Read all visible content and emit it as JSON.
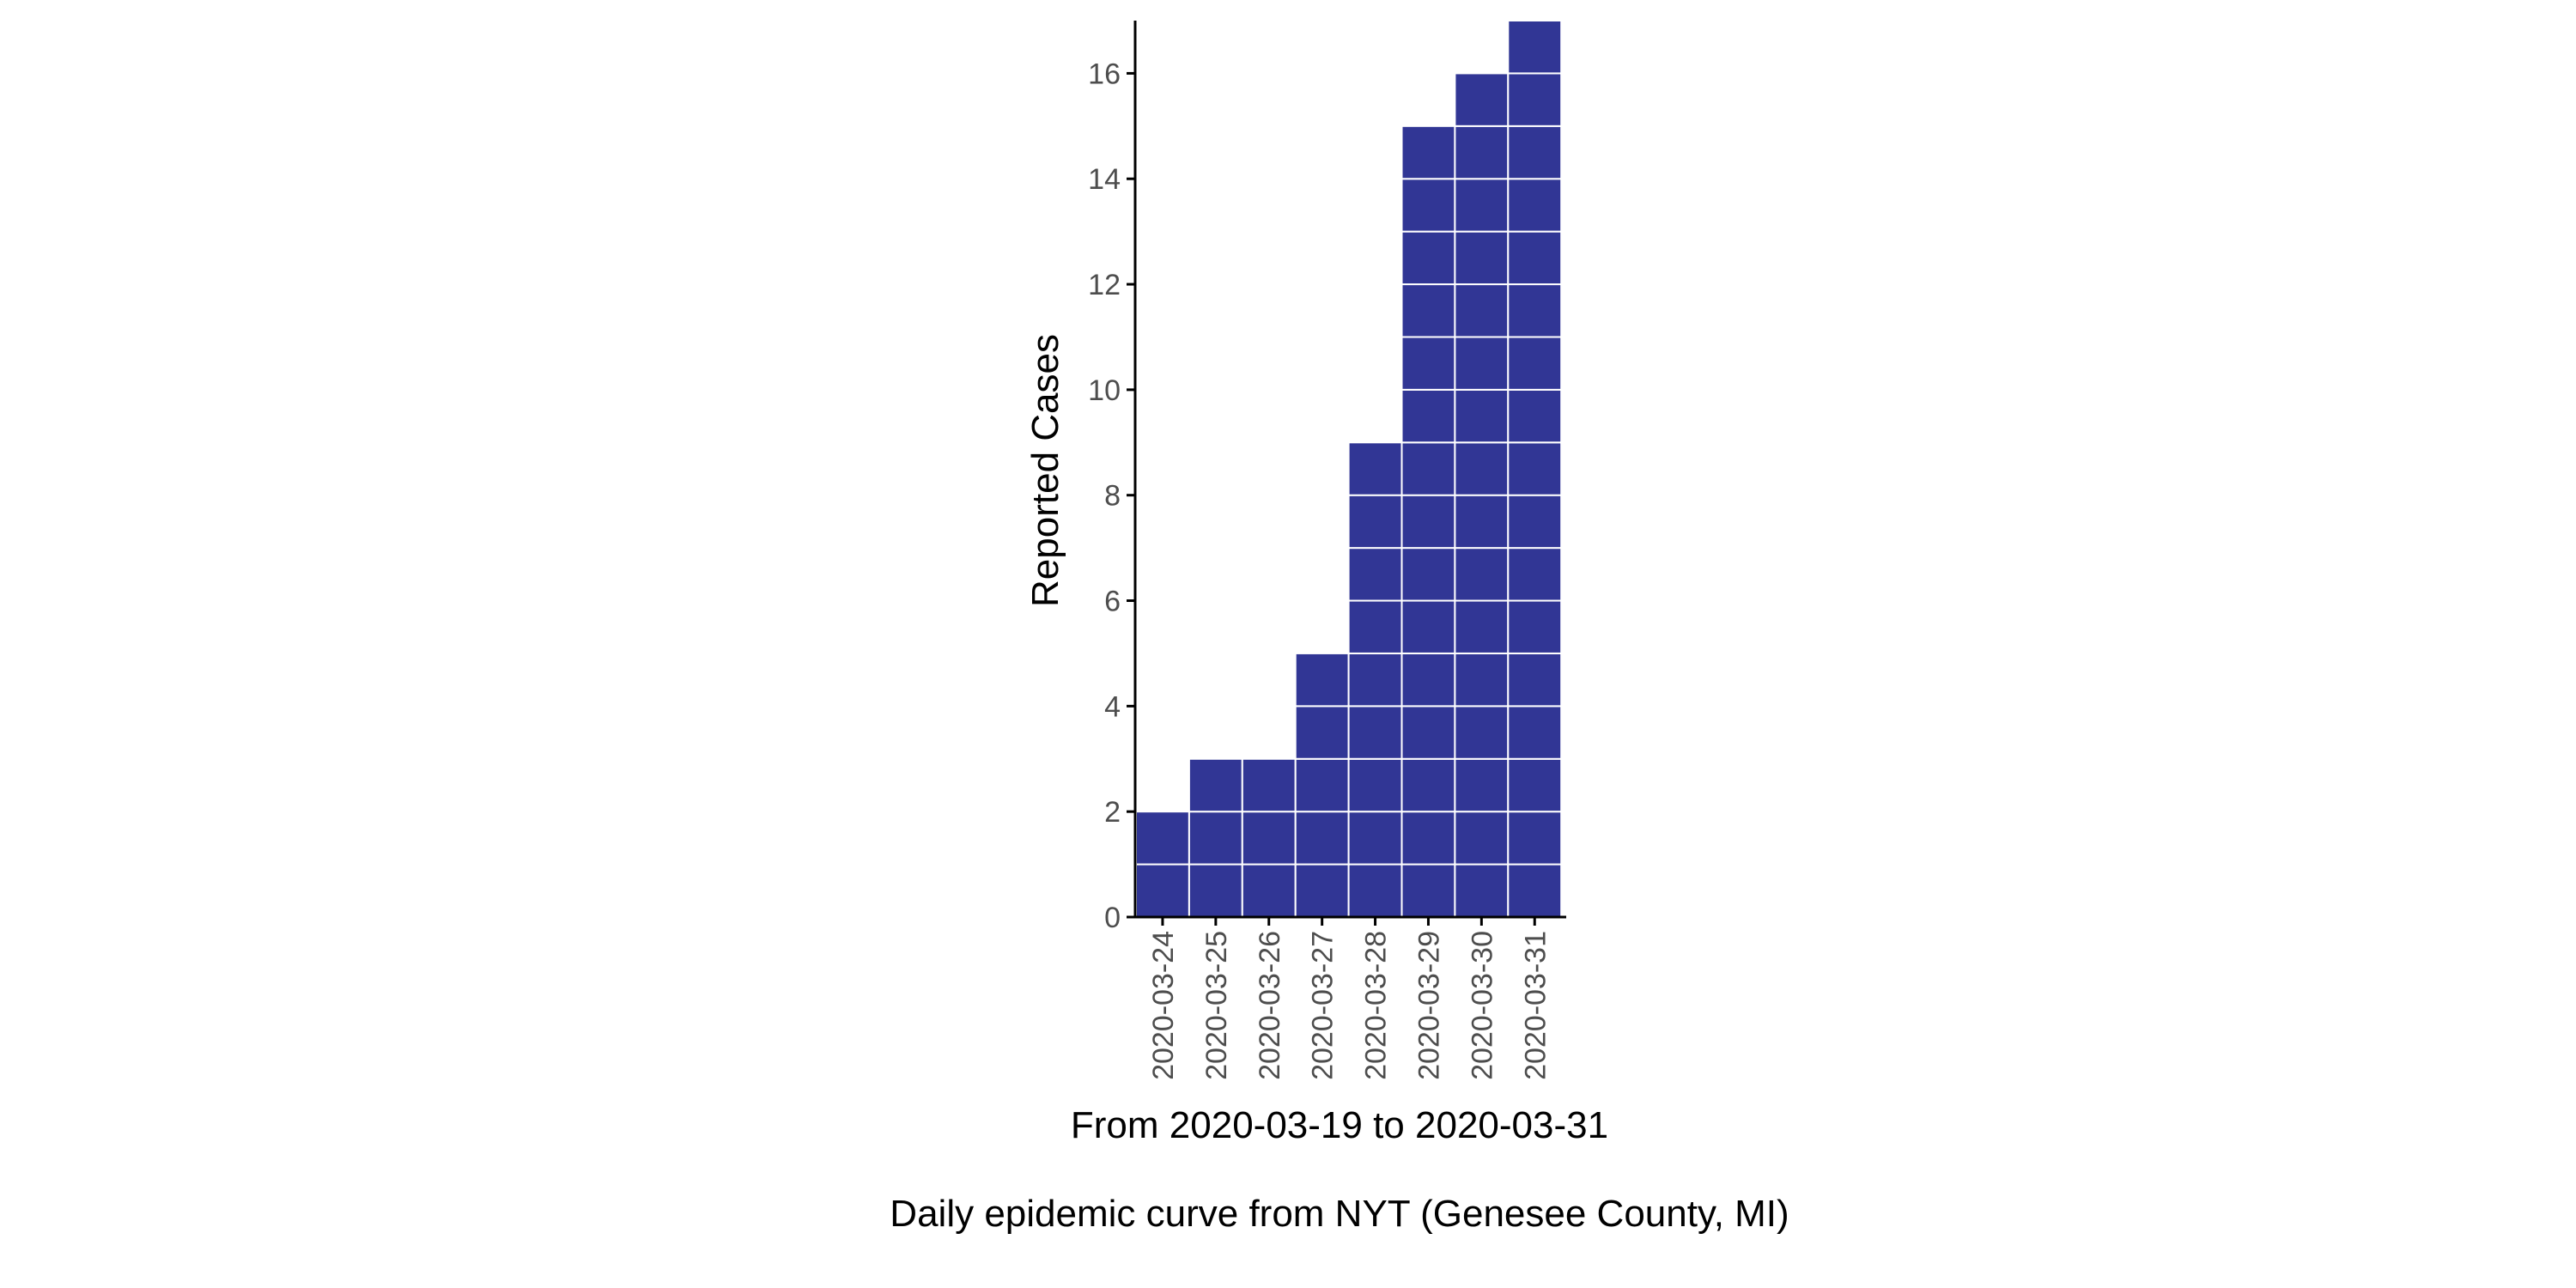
{
  "chart_data": {
    "type": "bar",
    "style": "stacked unit tiles (one tile per reported case)",
    "categories": [
      "2020-03-24",
      "2020-03-25",
      "2020-03-26",
      "2020-03-27",
      "2020-03-28",
      "2020-03-29",
      "2020-03-30",
      "2020-03-31"
    ],
    "values": [
      2,
      3,
      3,
      5,
      9,
      15,
      16,
      17
    ],
    "ylabel": "Reported Cases",
    "xlabel": "From 2020-03-19 to 2020-03-31",
    "caption": "Daily epidemic curve from NYT (Genesee County, MI)",
    "ylim": [
      0,
      17
    ],
    "yticks": [
      0,
      2,
      4,
      6,
      8,
      10,
      12,
      14,
      16
    ],
    "grid": false,
    "colors": {
      "bar_fill": "#313695",
      "tile_border": "#ffffff",
      "axis": "#000000",
      "tick_text": "#4d4d4d"
    }
  }
}
